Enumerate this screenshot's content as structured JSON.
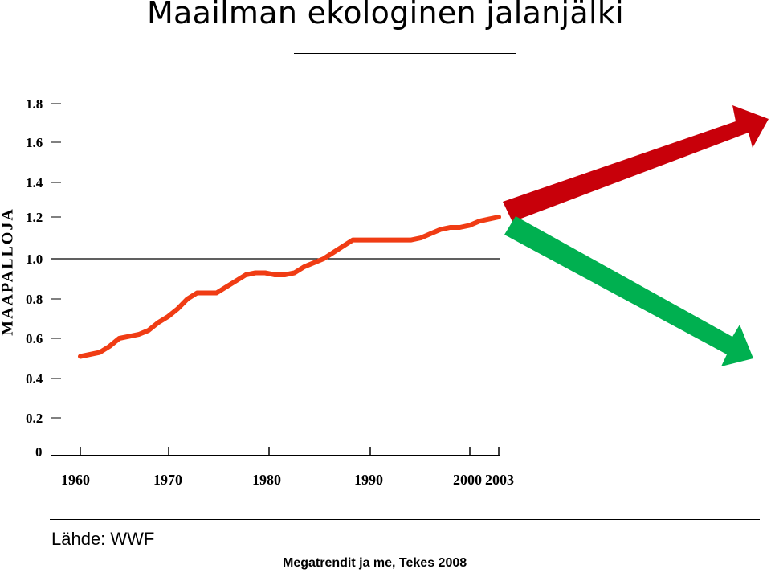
{
  "title": "Maailman ekologinen jalanjälki",
  "source": "Lähde: WWF",
  "credit": "Megatrendit ja me, Tekes 2008",
  "colors": {
    "line": "#f03c14",
    "arrow_up": "#c8000a",
    "arrow_down": "#00b050",
    "axis": "#000000"
  },
  "chart_data": {
    "type": "line",
    "title": "Maailman ekologinen jalanjälki",
    "xlabel": "",
    "ylabel": "MAAPALLOJA",
    "yticks": [
      "0",
      "0.2",
      "0.4",
      "0.6",
      "0.8",
      "1.0",
      "1.2",
      "1.4",
      "1.6",
      "1.8"
    ],
    "xticks": [
      "1960",
      "1970",
      "1980",
      "1990",
      "2000",
      "2003"
    ],
    "ylim": [
      0,
      1.8
    ],
    "xlim": [
      1960,
      2003
    ],
    "reference_line": 1.0,
    "series": [
      {
        "x": [
          1960,
          1961,
          1962,
          1963,
          1964,
          1965,
          1966,
          1967,
          1968,
          1969,
          1970,
          1971,
          1972,
          1973,
          1974,
          1975,
          1976,
          1977,
          1978,
          1979,
          1980,
          1981,
          1982,
          1983,
          1984,
          1985,
          1986,
          1987,
          1988,
          1989,
          1990,
          1991,
          1992,
          1993,
          1994,
          1995,
          1996,
          1997,
          1998,
          1999,
          2000,
          2001,
          2002,
          2003
        ],
        "values": [
          0.51,
          0.52,
          0.53,
          0.56,
          0.6,
          0.61,
          0.62,
          0.64,
          0.68,
          0.71,
          0.75,
          0.8,
          0.83,
          0.83,
          0.83,
          0.86,
          0.89,
          0.92,
          0.93,
          0.93,
          0.92,
          0.92,
          0.93,
          0.96,
          0.98,
          1.0,
          1.03,
          1.06,
          1.09,
          1.09,
          1.09,
          1.09,
          1.09,
          1.09,
          1.09,
          1.1,
          1.12,
          1.14,
          1.15,
          1.15,
          1.16,
          1.18,
          1.19,
          1.2
        ]
      }
    ],
    "arrows": [
      {
        "direction": "up",
        "color": "#c8000a"
      },
      {
        "direction": "down",
        "color": "#00b050"
      }
    ]
  }
}
